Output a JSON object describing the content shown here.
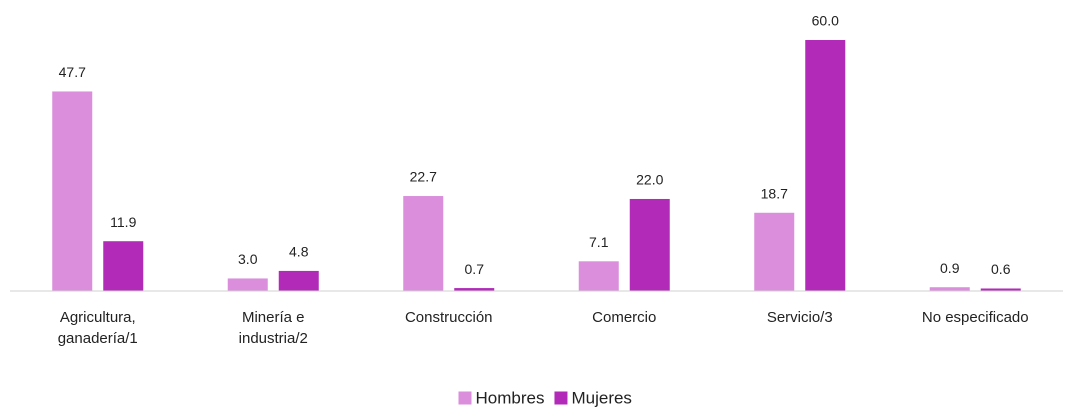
{
  "chart_data": {
    "type": "bar",
    "categories": [
      "Agricultura, ganadería/1",
      "Minería e industria/2",
      "Construcción",
      "Comercio",
      "Servicio/3",
      "No especificado"
    ],
    "series": [
      {
        "name": "Hombres",
        "color": "#da8edc",
        "values": [
          47.7,
          3.0,
          22.7,
          7.1,
          18.7,
          0.9
        ],
        "value_labels": [
          "47.7",
          "3.0",
          "22.7",
          "7.1",
          "18.7",
          "0.9"
        ]
      },
      {
        "name": "Mujeres",
        "color": "#b22ab8",
        "values": [
          11.9,
          4.8,
          0.7,
          22.0,
          60.0,
          0.6
        ],
        "value_labels": [
          "11.9",
          "4.8",
          "0.7",
          "22.0",
          "60.0",
          "0.6"
        ]
      }
    ],
    "ylim": [
      0,
      60
    ],
    "legend": "bottom"
  }
}
